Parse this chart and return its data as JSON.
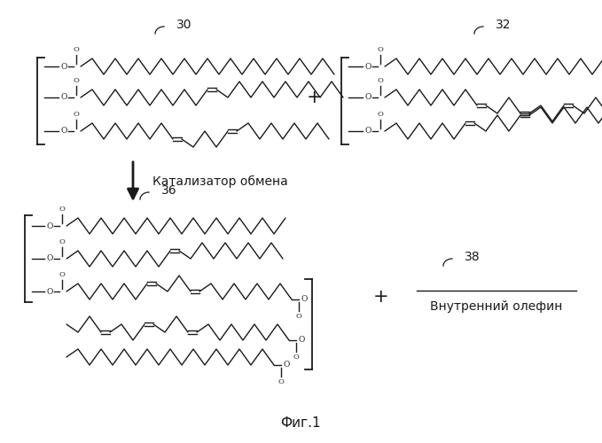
{
  "bg_color": "#ffffff",
  "line_color": "#1a1a1a",
  "figsize": [
    6.79,
    5.0
  ],
  "dpi": 100,
  "label_30": "30",
  "label_32": "32",
  "label_36": "36",
  "label_38": "38",
  "arrow_text": "Катализатор обмена",
  "olefin_text": "Внутренний олефин",
  "fig_label": "Фиг.1",
  "plus_sign": "+",
  "font_size_labels": 10,
  "font_size_text": 9,
  "font_size_fig": 10
}
